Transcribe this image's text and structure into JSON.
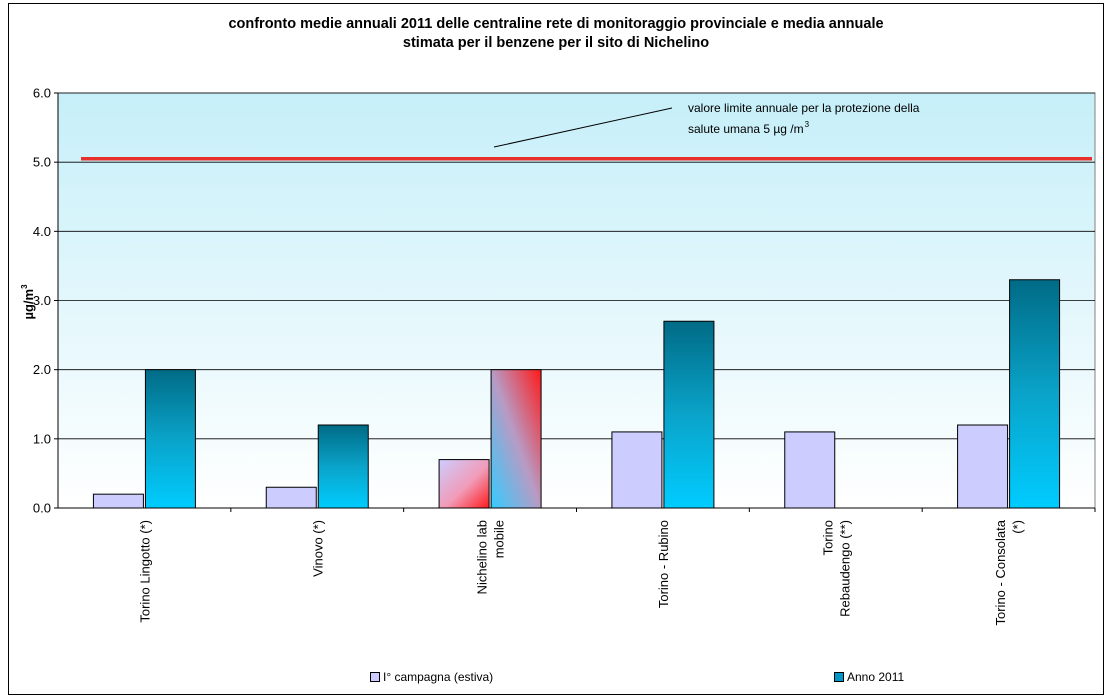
{
  "chart_data": {
    "type": "bar",
    "title_line1": "confronto medie annuali 2011 delle centraline rete di monitoraggio provinciale e media annuale",
    "title_line2": "stimata  per il benzene per il sito di Nichelino",
    "ylabel": "µg/m",
    "ylabel_sup": "3",
    "ylim": [
      0,
      6
    ],
    "yticks": [
      "0.0",
      "1.0",
      "2.0",
      "3.0",
      "4.0",
      "5.0",
      "6.0"
    ],
    "grid": true,
    "categories": [
      [
        "Torino Lingotto (*)"
      ],
      [
        "Vinovo (*)"
      ],
      [
        "Nichelino lab",
        "mobile"
      ],
      [
        "Torino - Rubino"
      ],
      [
        "Torino",
        "Rebaudengo (**)"
      ],
      [
        "Torino - Consolata",
        "(*)"
      ]
    ],
    "series": [
      {
        "name": "I° campagna (estiva)",
        "values": [
          0.2,
          0.3,
          0.7,
          1.1,
          1.1,
          1.2
        ],
        "color": "#ccccff"
      },
      {
        "name": "Anno 2011",
        "values": [
          2.0,
          1.2,
          2.0,
          2.7,
          null,
          3.3
        ],
        "color": "#00ccff"
      }
    ],
    "highlight_category_index": 2,
    "limit_line": {
      "value": 5.05,
      "color": "#e8302a"
    },
    "annotation_line1": "valore limite annuale per la protezione della",
    "annotation_line2": "salute umana 5 µg /m",
    "annotation_sup": "3",
    "legend_position": "bottom",
    "plot_background": "#ccf2fb"
  }
}
